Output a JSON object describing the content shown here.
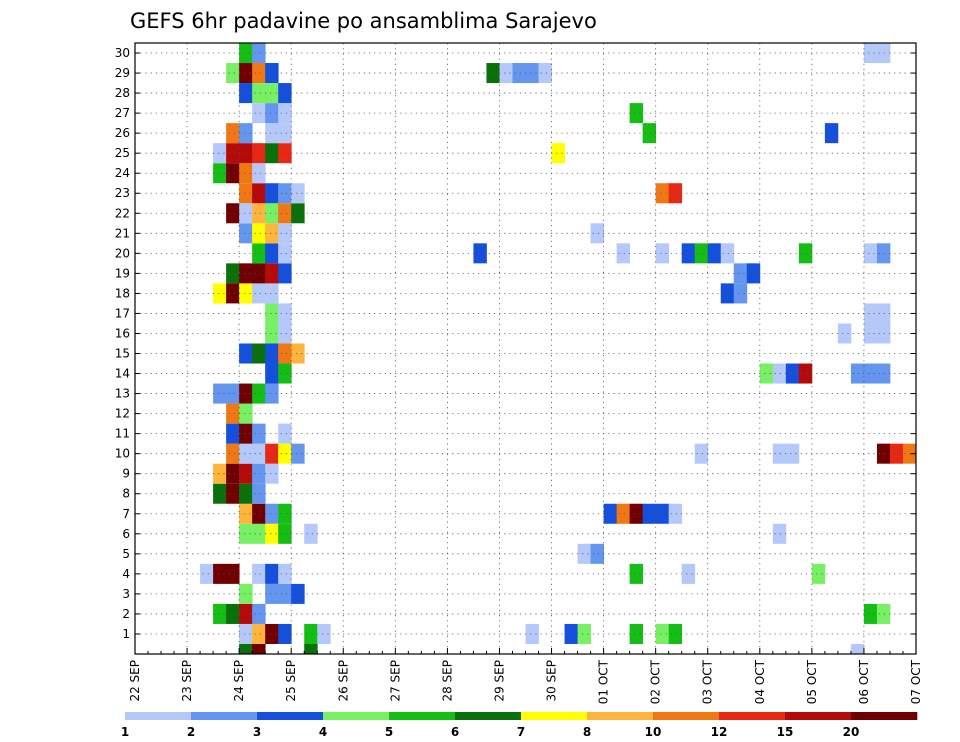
{
  "chart_data": {
    "type": "heatmap",
    "title": "GEFS 6hr padavine po ansamblima Sarajevo",
    "xlabel": "",
    "ylabel": "",
    "x_tick_labels": [
      "22 SEP",
      "23 SEP",
      "24 SEP",
      "25 SEP",
      "26 SEP",
      "27 SEP",
      "28 SEP",
      "29 SEP",
      "30 SEP",
      "01 OCT",
      "02 OCT",
      "03 OCT",
      "04 OCT",
      "05 OCT",
      "06 OCT",
      "07 OCT"
    ],
    "y_tick_labels": [
      "1",
      "2",
      "3",
      "4",
      "5",
      "6",
      "7",
      "8",
      "9",
      "10",
      "11",
      "12",
      "13",
      "14",
      "15",
      "16",
      "17",
      "18",
      "19",
      "20",
      "21",
      "22",
      "23",
      "24",
      "25",
      "26",
      "27",
      "28",
      "29",
      "30"
    ],
    "x_steps_per_day": 4,
    "grid": "dotted",
    "legend_position": "bottom",
    "colorbar": {
      "labels": [
        "1",
        "2",
        "3",
        "4",
        "5",
        "6",
        "7",
        "8",
        "10",
        "12",
        "15",
        "20"
      ],
      "colors": [
        "#b4c8fa",
        "#6496f0",
        "#1450dc",
        "#78f064",
        "#14be14",
        "#0a700a",
        "#ffff00",
        "#ffb43c",
        "#f07814",
        "#e62814",
        "#b40a0a",
        "#700000"
      ]
    },
    "cells": [
      [
        1,
        8,
        0
      ],
      [
        1,
        9,
        7
      ],
      [
        1,
        10,
        11
      ],
      [
        1,
        11,
        2
      ],
      [
        1,
        13,
        4
      ],
      [
        1,
        14,
        0
      ],
      [
        1,
        30,
        0
      ],
      [
        1,
        33,
        2
      ],
      [
        1,
        34,
        3
      ],
      [
        1,
        38,
        4
      ],
      [
        1,
        40,
        3
      ],
      [
        1,
        41,
        4
      ],
      [
        2,
        6,
        4
      ],
      [
        2,
        7,
        5
      ],
      [
        2,
        8,
        10
      ],
      [
        2,
        9,
        1
      ],
      [
        2,
        56,
        4
      ],
      [
        2,
        57,
        3
      ],
      [
        3,
        8,
        3
      ],
      [
        3,
        10,
        1
      ],
      [
        3,
        11,
        1
      ],
      [
        3,
        12,
        2
      ],
      [
        4,
        5,
        0
      ],
      [
        4,
        6,
        11
      ],
      [
        4,
        7,
        11
      ],
      [
        4,
        9,
        0
      ],
      [
        4,
        10,
        2
      ],
      [
        4,
        11,
        0
      ],
      [
        4,
        38,
        4
      ],
      [
        4,
        42,
        0
      ],
      [
        4,
        52,
        3
      ],
      [
        5,
        34,
        0
      ],
      [
        5,
        35,
        1
      ],
      [
        6,
        8,
        3
      ],
      [
        6,
        9,
        3
      ],
      [
        6,
        10,
        6
      ],
      [
        6,
        11,
        4
      ],
      [
        6,
        13,
        0
      ],
      [
        6,
        49,
        0
      ],
      [
        7,
        8,
        7
      ],
      [
        7,
        9,
        11
      ],
      [
        7,
        10,
        1
      ],
      [
        7,
        11,
        4
      ],
      [
        7,
        36,
        2
      ],
      [
        7,
        37,
        8
      ],
      [
        7,
        38,
        11
      ],
      [
        7,
        39,
        2
      ],
      [
        7,
        40,
        2
      ],
      [
        7,
        41,
        0
      ],
      [
        8,
        6,
        5
      ],
      [
        8,
        7,
        11
      ],
      [
        8,
        8,
        5
      ],
      [
        8,
        9,
        1
      ],
      [
        9,
        6,
        7
      ],
      [
        9,
        7,
        11
      ],
      [
        9,
        8,
        10
      ],
      [
        9,
        9,
        1
      ],
      [
        9,
        10,
        0
      ],
      [
        10,
        7,
        8
      ],
      [
        10,
        8,
        0
      ],
      [
        10,
        9,
        0
      ],
      [
        10,
        10,
        9
      ],
      [
        10,
        11,
        6
      ],
      [
        10,
        12,
        1
      ],
      [
        10,
        43,
        0
      ],
      [
        10,
        49,
        0
      ],
      [
        10,
        50,
        0
      ],
      [
        10,
        57,
        11
      ],
      [
        10,
        58,
        9
      ],
      [
        10,
        59,
        8
      ],
      [
        11,
        7,
        2
      ],
      [
        11,
        8,
        11
      ],
      [
        11,
        9,
        1
      ],
      [
        11,
        11,
        0
      ],
      [
        12,
        7,
        8
      ],
      [
        12,
        8,
        3
      ],
      [
        13,
        6,
        1
      ],
      [
        13,
        7,
        1
      ],
      [
        13,
        8,
        11
      ],
      [
        13,
        9,
        4
      ],
      [
        13,
        10,
        1
      ],
      [
        14,
        10,
        2
      ],
      [
        14,
        11,
        4
      ],
      [
        14,
        48,
        3
      ],
      [
        14,
        49,
        0
      ],
      [
        14,
        50,
        2
      ],
      [
        14,
        51,
        10
      ],
      [
        14,
        55,
        1
      ],
      [
        14,
        56,
        1
      ],
      [
        14,
        57,
        1
      ],
      [
        15,
        8,
        2
      ],
      [
        15,
        9,
        5
      ],
      [
        15,
        10,
        2
      ],
      [
        15,
        11,
        8
      ],
      [
        15,
        12,
        7
      ],
      [
        16,
        10,
        3
      ],
      [
        16,
        11,
        0
      ],
      [
        16,
        54,
        0
      ],
      [
        16,
        56,
        0
      ],
      [
        16,
        57,
        0
      ],
      [
        17,
        10,
        3
      ],
      [
        17,
        11,
        0
      ],
      [
        17,
        56,
        0
      ],
      [
        17,
        57,
        0
      ],
      [
        18,
        6,
        6
      ],
      [
        18,
        7,
        11
      ],
      [
        18,
        8,
        6
      ],
      [
        18,
        9,
        0
      ],
      [
        18,
        10,
        0
      ],
      [
        18,
        45,
        2
      ],
      [
        18,
        46,
        1
      ],
      [
        19,
        7,
        5
      ],
      [
        19,
        8,
        11
      ],
      [
        19,
        9,
        11
      ],
      [
        19,
        10,
        10
      ],
      [
        19,
        11,
        2
      ],
      [
        19,
        46,
        1
      ],
      [
        19,
        47,
        2
      ],
      [
        20,
        9,
        4
      ],
      [
        20,
        10,
        2
      ],
      [
        20,
        11,
        0
      ],
      [
        20,
        26,
        2
      ],
      [
        20,
        37,
        0
      ],
      [
        20,
        40,
        0
      ],
      [
        20,
        42,
        2
      ],
      [
        20,
        43,
        4
      ],
      [
        20,
        44,
        2
      ],
      [
        20,
        45,
        0
      ],
      [
        20,
        51,
        4
      ],
      [
        20,
        56,
        0
      ],
      [
        20,
        57,
        1
      ],
      [
        21,
        8,
        1
      ],
      [
        21,
        9,
        6
      ],
      [
        21,
        10,
        7
      ],
      [
        21,
        11,
        0
      ],
      [
        21,
        35,
        0
      ],
      [
        22,
        7,
        11
      ],
      [
        22,
        8,
        0
      ],
      [
        22,
        9,
        7
      ],
      [
        22,
        10,
        3
      ],
      [
        22,
        11,
        8
      ],
      [
        22,
        12,
        5
      ],
      [
        23,
        8,
        8
      ],
      [
        23,
        9,
        10
      ],
      [
        23,
        10,
        2
      ],
      [
        23,
        11,
        1
      ],
      [
        23,
        12,
        0
      ],
      [
        23,
        40,
        8
      ],
      [
        23,
        41,
        9
      ],
      [
        24,
        6,
        4
      ],
      [
        24,
        7,
        11
      ],
      [
        24,
        8,
        8
      ],
      [
        24,
        9,
        0
      ],
      [
        25,
        6,
        0
      ],
      [
        25,
        7,
        10
      ],
      [
        25,
        8,
        10
      ],
      [
        25,
        9,
        9
      ],
      [
        25,
        10,
        5
      ],
      [
        25,
        11,
        9
      ],
      [
        25,
        32,
        6
      ],
      [
        26,
        7,
        8
      ],
      [
        26,
        8,
        1
      ],
      [
        26,
        10,
        0
      ],
      [
        26,
        11,
        0
      ],
      [
        26,
        39,
        4
      ],
      [
        26,
        53,
        2
      ],
      [
        27,
        9,
        0
      ],
      [
        27,
        10,
        1
      ],
      [
        27,
        11,
        0
      ],
      [
        27,
        38,
        4
      ],
      [
        28,
        8,
        2
      ],
      [
        28,
        9,
        3
      ],
      [
        28,
        10,
        3
      ],
      [
        28,
        11,
        2
      ],
      [
        29,
        7,
        3
      ],
      [
        29,
        8,
        11
      ],
      [
        29,
        9,
        8
      ],
      [
        29,
        10,
        2
      ],
      [
        29,
        27,
        5
      ],
      [
        29,
        28,
        0
      ],
      [
        29,
        29,
        1
      ],
      [
        29,
        30,
        1
      ],
      [
        29,
        31,
        0
      ],
      [
        30,
        8,
        4
      ],
      [
        30,
        9,
        1
      ],
      [
        30,
        56,
        0
      ],
      [
        30,
        57,
        0
      ],
      [
        0,
        8,
        5
      ],
      [
        0,
        9,
        11
      ],
      [
        0,
        13,
        5
      ],
      [
        0,
        55,
        0
      ]
    ]
  }
}
